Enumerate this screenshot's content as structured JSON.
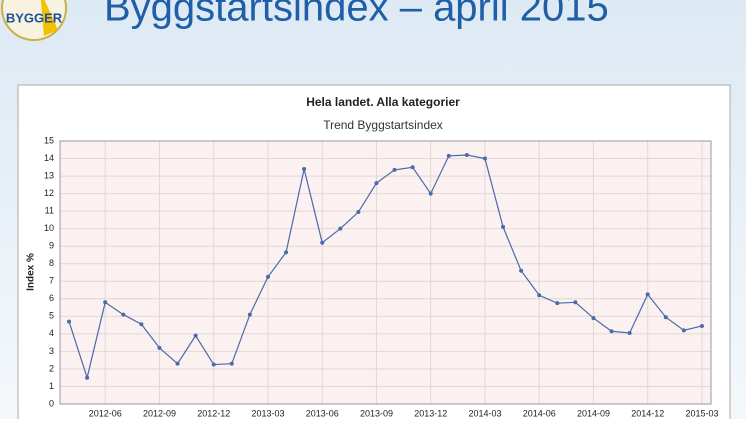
{
  "header": {
    "title": "Byggstartsindex – april 2015",
    "logo": "BYGGER"
  },
  "chart_data": {
    "type": "line",
    "title": "Hela landet. Alla kategorier",
    "subtitle": "Trend Byggstartsindex",
    "y_label": "Index %",
    "categories": [
      null,
      null,
      "2012-06",
      null,
      null,
      "2012-09",
      null,
      null,
      "2012-12",
      null,
      null,
      "2013-03",
      null,
      null,
      "2013-06",
      null,
      null,
      "2013-09",
      null,
      null,
      "2013-12",
      null,
      null,
      "2014-03",
      null,
      null,
      "2014-06",
      null,
      null,
      "2014-09",
      null,
      null,
      "2014-12",
      null,
      null,
      "2015-03"
    ],
    "values": [
      4.7,
      1.5,
      5.8,
      5.1,
      4.55,
      3.2,
      2.3,
      3.9,
      2.25,
      2.3,
      5.1,
      7.25,
      8.65,
      13.4,
      9.2,
      10,
      10.95,
      12.6,
      13.35,
      13.5,
      12,
      14.15,
      14.2,
      14,
      10.1,
      7.6,
      6.2,
      5.75,
      5.8,
      4.9,
      4.15,
      4.05,
      6.25,
      4.95,
      4.2,
      4.45
    ],
    "color": "#4a6aa8",
    "ylim": [
      0,
      15
    ],
    "yticks": [
      0,
      1,
      2,
      3,
      4,
      5,
      6,
      7,
      8,
      9,
      10,
      11,
      12,
      13,
      14,
      15
    ],
    "grid": true
  }
}
